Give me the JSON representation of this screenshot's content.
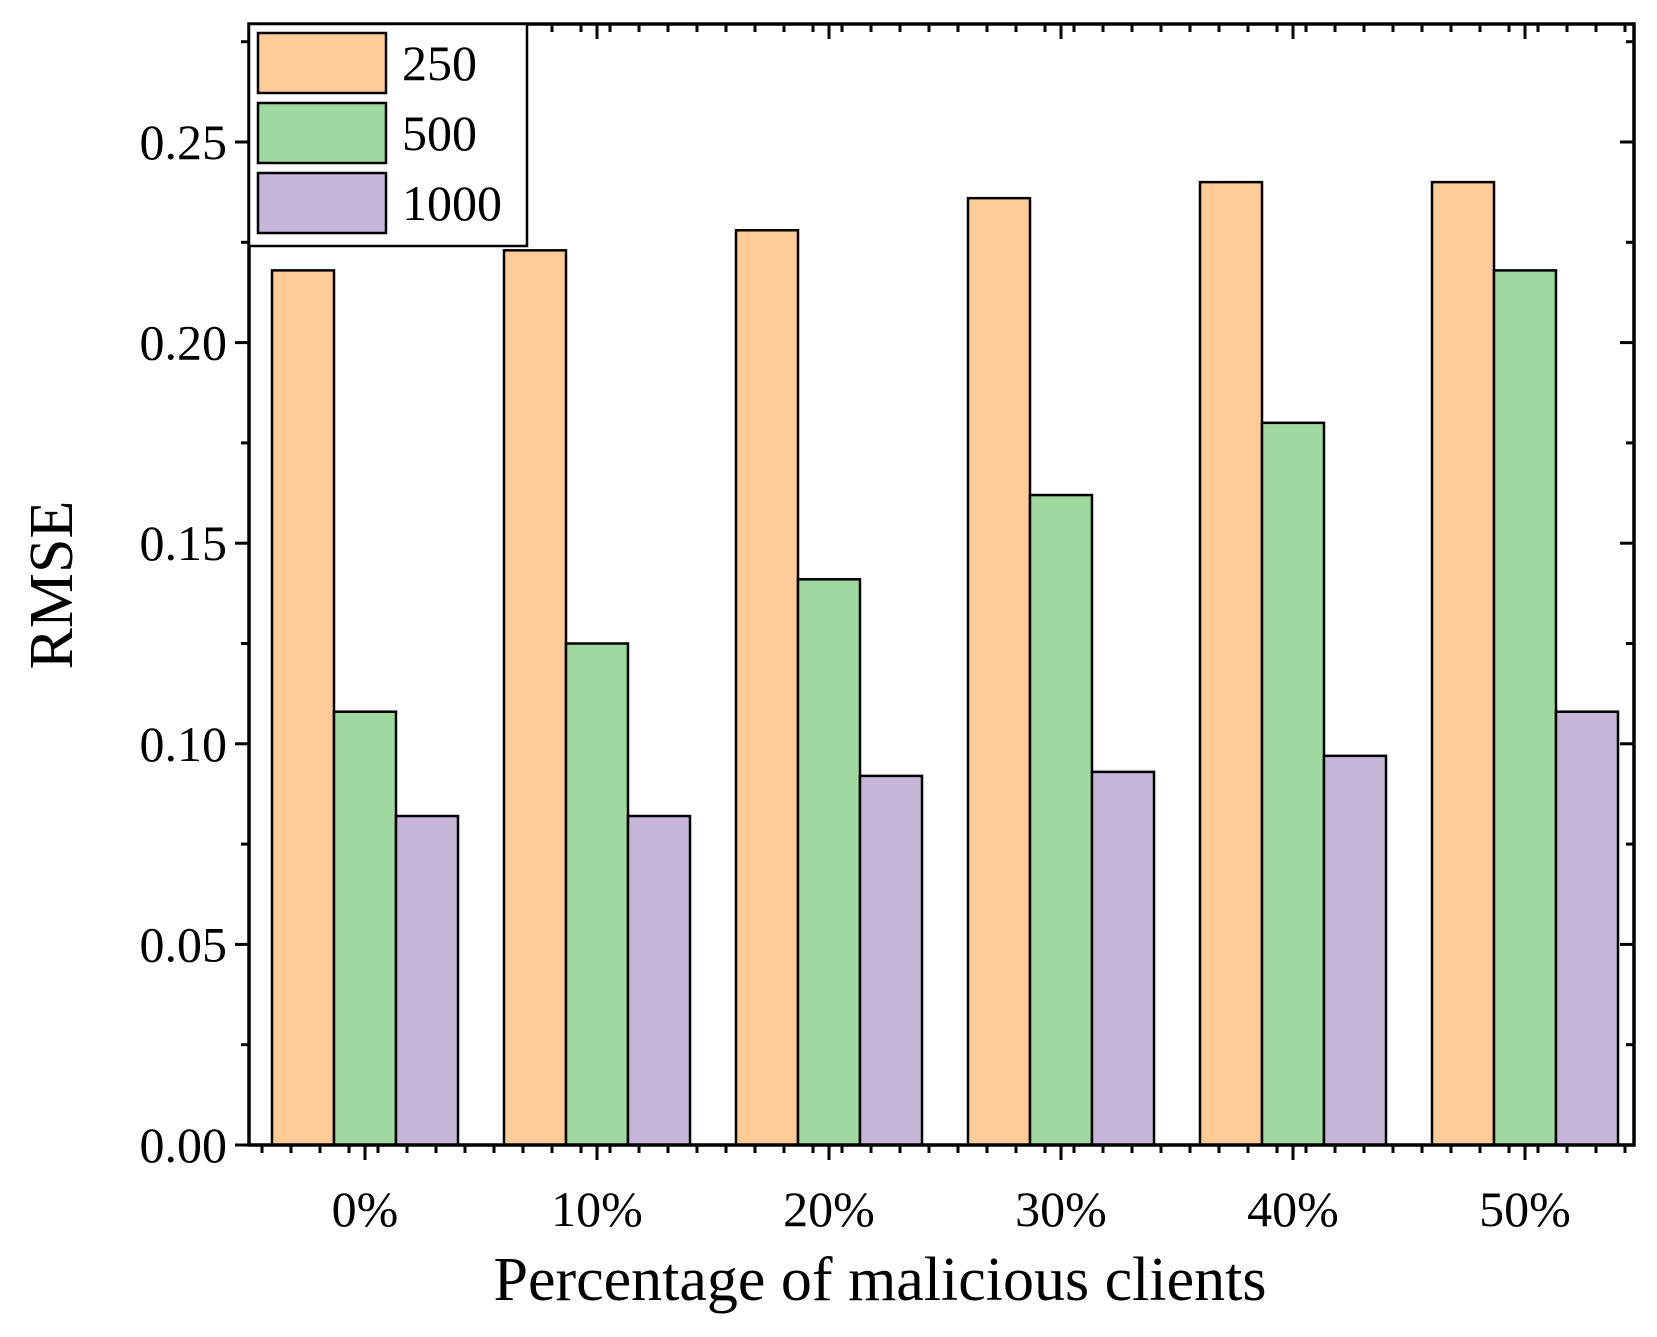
{
  "chart_data": {
    "type": "bar",
    "title": "",
    "xlabel": "Percentage of malicious clients",
    "ylabel": "RMSE",
    "categories": [
      "0%",
      "10%",
      "20%",
      "30%",
      "40%",
      "50%"
    ],
    "series": [
      {
        "name": "250",
        "color": "#FFCC99",
        "values": [
          0.218,
          0.223,
          0.228,
          0.236,
          0.24,
          0.24
        ]
      },
      {
        "name": "500",
        "color": "#9FD99F",
        "values": [
          0.108,
          0.125,
          0.141,
          0.162,
          0.18,
          0.218
        ]
      },
      {
        "name": "1000",
        "color": "#C7B5D9",
        "values": [
          0.082,
          0.082,
          0.092,
          0.093,
          0.097,
          0.108
        ]
      }
    ],
    "ylim": [
      0,
      0.28
    ],
    "yticks": [
      "0.00",
      "0.05",
      "0.10",
      "0.15",
      "0.20",
      "0.25"
    ],
    "ytick_values": [
      0,
      0.05,
      0.1,
      0.15,
      0.2,
      0.25
    ],
    "grid": false,
    "legend_position": "top-left"
  }
}
